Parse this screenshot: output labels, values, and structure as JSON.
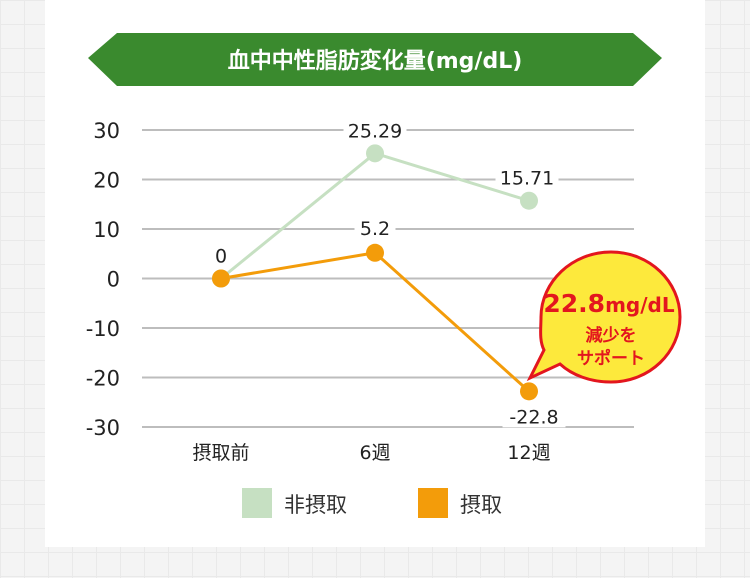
{
  "colors": {
    "banner": "#3a8a2e",
    "non_intake": "#c6e0c2",
    "intake": "#f39c0a",
    "grid": "#bdbdbd",
    "callout_bg": "#fde93c",
    "callout_border": "#e3161e",
    "callout_text": "#e3161e"
  },
  "chart_data": {
    "type": "line",
    "title": "血中中性脂肪変化量(mg/dL)",
    "categories": [
      "摂取前",
      "6週",
      "12週"
    ],
    "ylim": [
      -30,
      30
    ],
    "yticks": [
      "30",
      "20",
      "10",
      "0",
      "-10",
      "-20",
      "-30"
    ],
    "ytick_values": [
      30,
      20,
      10,
      0,
      -10,
      -20,
      -30
    ],
    "grid": true,
    "legend_position": "bottom",
    "series": [
      {
        "name": "非摂取",
        "values": [
          0,
          25.29,
          15.71
        ],
        "labels": [
          "",
          "25.29",
          "15.71"
        ]
      },
      {
        "name": "摂取",
        "values": [
          0,
          5.2,
          -22.8
        ],
        "labels": [
          "0",
          "5.2",
          "-22.8"
        ]
      }
    ],
    "annotation": {
      "value": "22.8",
      "unit": "mg/dL",
      "line1": "減少を",
      "line2": "サポート"
    }
  }
}
